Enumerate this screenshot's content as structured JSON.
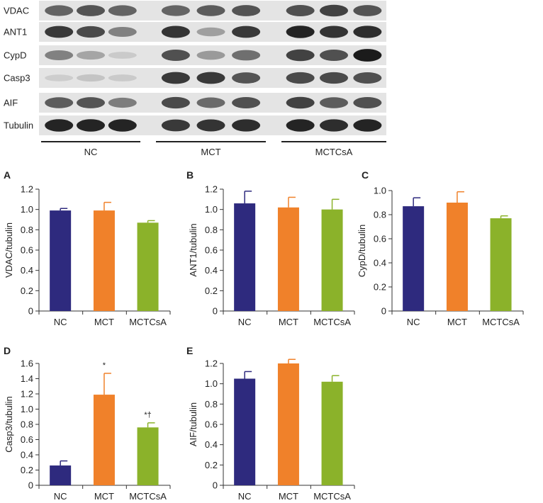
{
  "blot": {
    "rows": [
      "VDAC",
      "ANT1",
      "CypD",
      "Casp3",
      "AIF",
      "Tubulin"
    ],
    "groups": [
      "NC",
      "MCT",
      "MCTCsA"
    ],
    "lanes_per_group": 3,
    "band_intensity": [
      [
        0.72,
        0.78,
        0.72,
        0.72,
        0.75,
        0.78,
        0.8,
        0.85,
        0.78
      ],
      [
        0.88,
        0.82,
        0.6,
        0.9,
        0.45,
        0.88,
        0.95,
        0.9,
        0.92
      ],
      [
        0.6,
        0.42,
        0.18,
        0.8,
        0.48,
        0.68,
        0.85,
        0.8,
        0.98
      ],
      [
        0.15,
        0.22,
        0.18,
        0.88,
        0.88,
        0.78,
        0.82,
        0.82,
        0.8
      ],
      [
        0.75,
        0.78,
        0.62,
        0.82,
        0.7,
        0.8,
        0.85,
        0.75,
        0.8
      ],
      [
        0.95,
        0.95,
        0.95,
        0.88,
        0.9,
        0.92,
        0.95,
        0.92,
        0.95
      ]
    ]
  },
  "colors": {
    "NC": "#2e2a7e",
    "MCT": "#f0812a",
    "MCTCsA": "#8bb22a"
  },
  "chart_data": [
    {
      "panel": "A",
      "type": "bar",
      "categories": [
        "NC",
        "MCT",
        "MCTCsA"
      ],
      "values": [
        0.99,
        0.99,
        0.87
      ],
      "errors": [
        0.02,
        0.08,
        0.02
      ],
      "ylabel": "VDAC/tubulin",
      "ylim": [
        0,
        1.2
      ],
      "yticks": [
        "0",
        "0.2",
        "0.4",
        "0.6",
        "0.8",
        "1.0",
        "1.2"
      ],
      "annotations": [
        "",
        "",
        ""
      ]
    },
    {
      "panel": "B",
      "type": "bar",
      "categories": [
        "NC",
        "MCT",
        "MCTCsA"
      ],
      "values": [
        1.06,
        1.02,
        1.0
      ],
      "errors": [
        0.12,
        0.1,
        0.1
      ],
      "ylabel": "ANT1/tubulin",
      "ylim": [
        0,
        1.2
      ],
      "yticks": [
        "0",
        "0.2",
        "0.4",
        "0.6",
        "0.8",
        "1.0",
        "1.2"
      ],
      "annotations": [
        "",
        "",
        ""
      ]
    },
    {
      "panel": "C",
      "type": "bar",
      "categories": [
        "NC",
        "MCT",
        "MCTCsA"
      ],
      "values": [
        0.87,
        0.9,
        0.77
      ],
      "errors": [
        0.07,
        0.09,
        0.02
      ],
      "ylabel": "CypD/tubulin",
      "ylim": [
        0,
        1.0
      ],
      "yticks": [
        "0",
        "0.2",
        "0.4",
        "0.6",
        "0.8",
        "1.0"
      ],
      "annotations": [
        "",
        "",
        ""
      ]
    },
    {
      "panel": "D",
      "type": "bar",
      "categories": [
        "NC",
        "MCT",
        "MCTCsA"
      ],
      "values": [
        0.26,
        1.19,
        0.76
      ],
      "errors": [
        0.06,
        0.28,
        0.06
      ],
      "ylabel": "Casp3/tubulin",
      "ylim": [
        0,
        1.6
      ],
      "yticks": [
        "0",
        "0.2",
        "0.4",
        "0.6",
        "0.8",
        "1.0",
        "1.2",
        "1.4",
        "1.6"
      ],
      "annotations": [
        "",
        "*",
        "*†"
      ]
    },
    {
      "panel": "E",
      "type": "bar",
      "categories": [
        "NC",
        "MCT",
        "MCTCsA"
      ],
      "values": [
        1.05,
        1.2,
        1.02
      ],
      "errors": [
        0.07,
        0.04,
        0.06
      ],
      "ylabel": "AIF/tubulin",
      "ylim": [
        0,
        1.2
      ],
      "yticks": [
        "0",
        "0.2",
        "0.4",
        "0.6",
        "0.8",
        "1.0",
        "1.2"
      ],
      "annotations": [
        "",
        "",
        ""
      ]
    }
  ]
}
